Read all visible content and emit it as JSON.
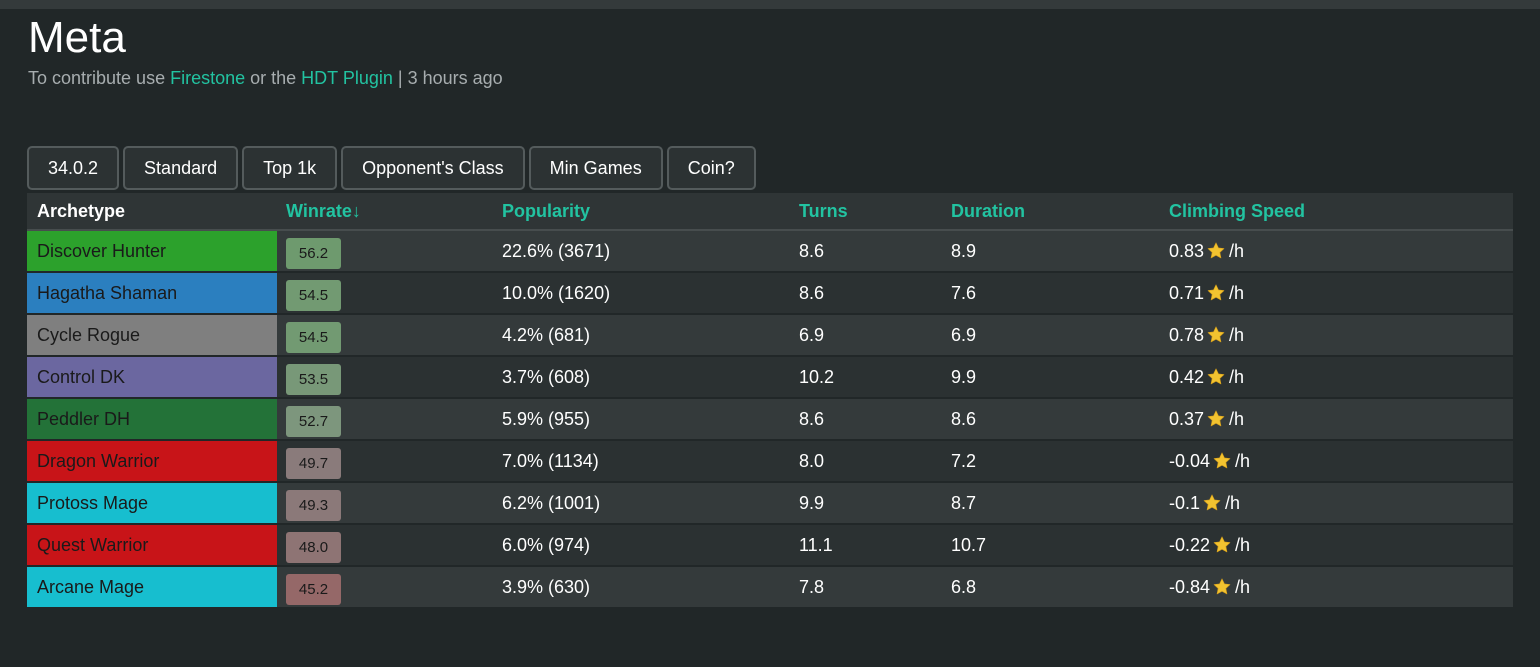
{
  "page": {
    "title": "Meta",
    "subtitle_prefix": "To contribute use ",
    "link_firestone": "Firestone",
    "subtitle_middle": " or the ",
    "link_hdt": "HDT Plugin",
    "subtitle_suffix": " | 3 hours ago"
  },
  "filters": [
    "34.0.2",
    "Standard",
    "Top 1k",
    "Opponent's Class",
    "Min Games",
    "Coin?"
  ],
  "table": {
    "headers": {
      "archetype": "Archetype",
      "winrate": "Winrate↓",
      "popularity": "Popularity",
      "turns": "Turns",
      "duration": "Duration",
      "climbing": "Climbing Speed"
    },
    "climb_unit": "/h",
    "rows": [
      {
        "archetype": "Discover Hunter",
        "color": "#2ca12c",
        "winrate": "56.2",
        "win_color": "#6e9a6e",
        "popularity": "22.6% (3671)",
        "turns": "8.6",
        "duration": "8.9",
        "climbing": "0.83"
      },
      {
        "archetype": "Hagatha Shaman",
        "color": "#2b7fbf",
        "winrate": "54.5",
        "win_color": "#729a72",
        "popularity": "10.0% (1620)",
        "turns": "8.6",
        "duration": "7.6",
        "climbing": "0.71"
      },
      {
        "archetype": "Cycle Rogue",
        "color": "#7f7f7f",
        "winrate": "54.5",
        "win_color": "#729a72",
        "popularity": "4.2% (681)",
        "turns": "6.9",
        "duration": "6.9",
        "climbing": "0.78"
      },
      {
        "archetype": "Control DK",
        "color": "#6b67a0",
        "winrate": "53.5",
        "win_color": "#789878",
        "popularity": "3.7% (608)",
        "turns": "10.2",
        "duration": "9.9",
        "climbing": "0.42"
      },
      {
        "archetype": "Peddler DH",
        "color": "#237238",
        "winrate": "52.7",
        "win_color": "#7d967d",
        "popularity": "5.9% (955)",
        "turns": "8.6",
        "duration": "8.6",
        "climbing": "0.37"
      },
      {
        "archetype": "Dragon Warrior",
        "color": "#c81418",
        "winrate": "49.7",
        "win_color": "#8a7b7b",
        "popularity": "7.0% (1134)",
        "turns": "8.0",
        "duration": "7.2",
        "climbing": "-0.04"
      },
      {
        "archetype": "Protoss Mage",
        "color": "#17becf",
        "winrate": "49.3",
        "win_color": "#8b7979",
        "popularity": "6.2% (1001)",
        "turns": "9.9",
        "duration": "8.7",
        "climbing": "-0.1"
      },
      {
        "archetype": "Quest Warrior",
        "color": "#c81418",
        "winrate": "48.0",
        "win_color": "#8e7474",
        "popularity": "6.0% (974)",
        "turns": "11.1",
        "duration": "10.7",
        "climbing": "-0.22"
      },
      {
        "archetype": "Arcane Mage",
        "color": "#17becf",
        "winrate": "45.2",
        "win_color": "#956868",
        "popularity": "3.9% (630)",
        "turns": "7.8",
        "duration": "6.8",
        "climbing": "-0.84"
      }
    ]
  },
  "colors": {
    "accent": "#22c3a1",
    "background": "#212728",
    "star": "#f2c330"
  },
  "icons": {
    "climb_icon": "star-icon"
  }
}
